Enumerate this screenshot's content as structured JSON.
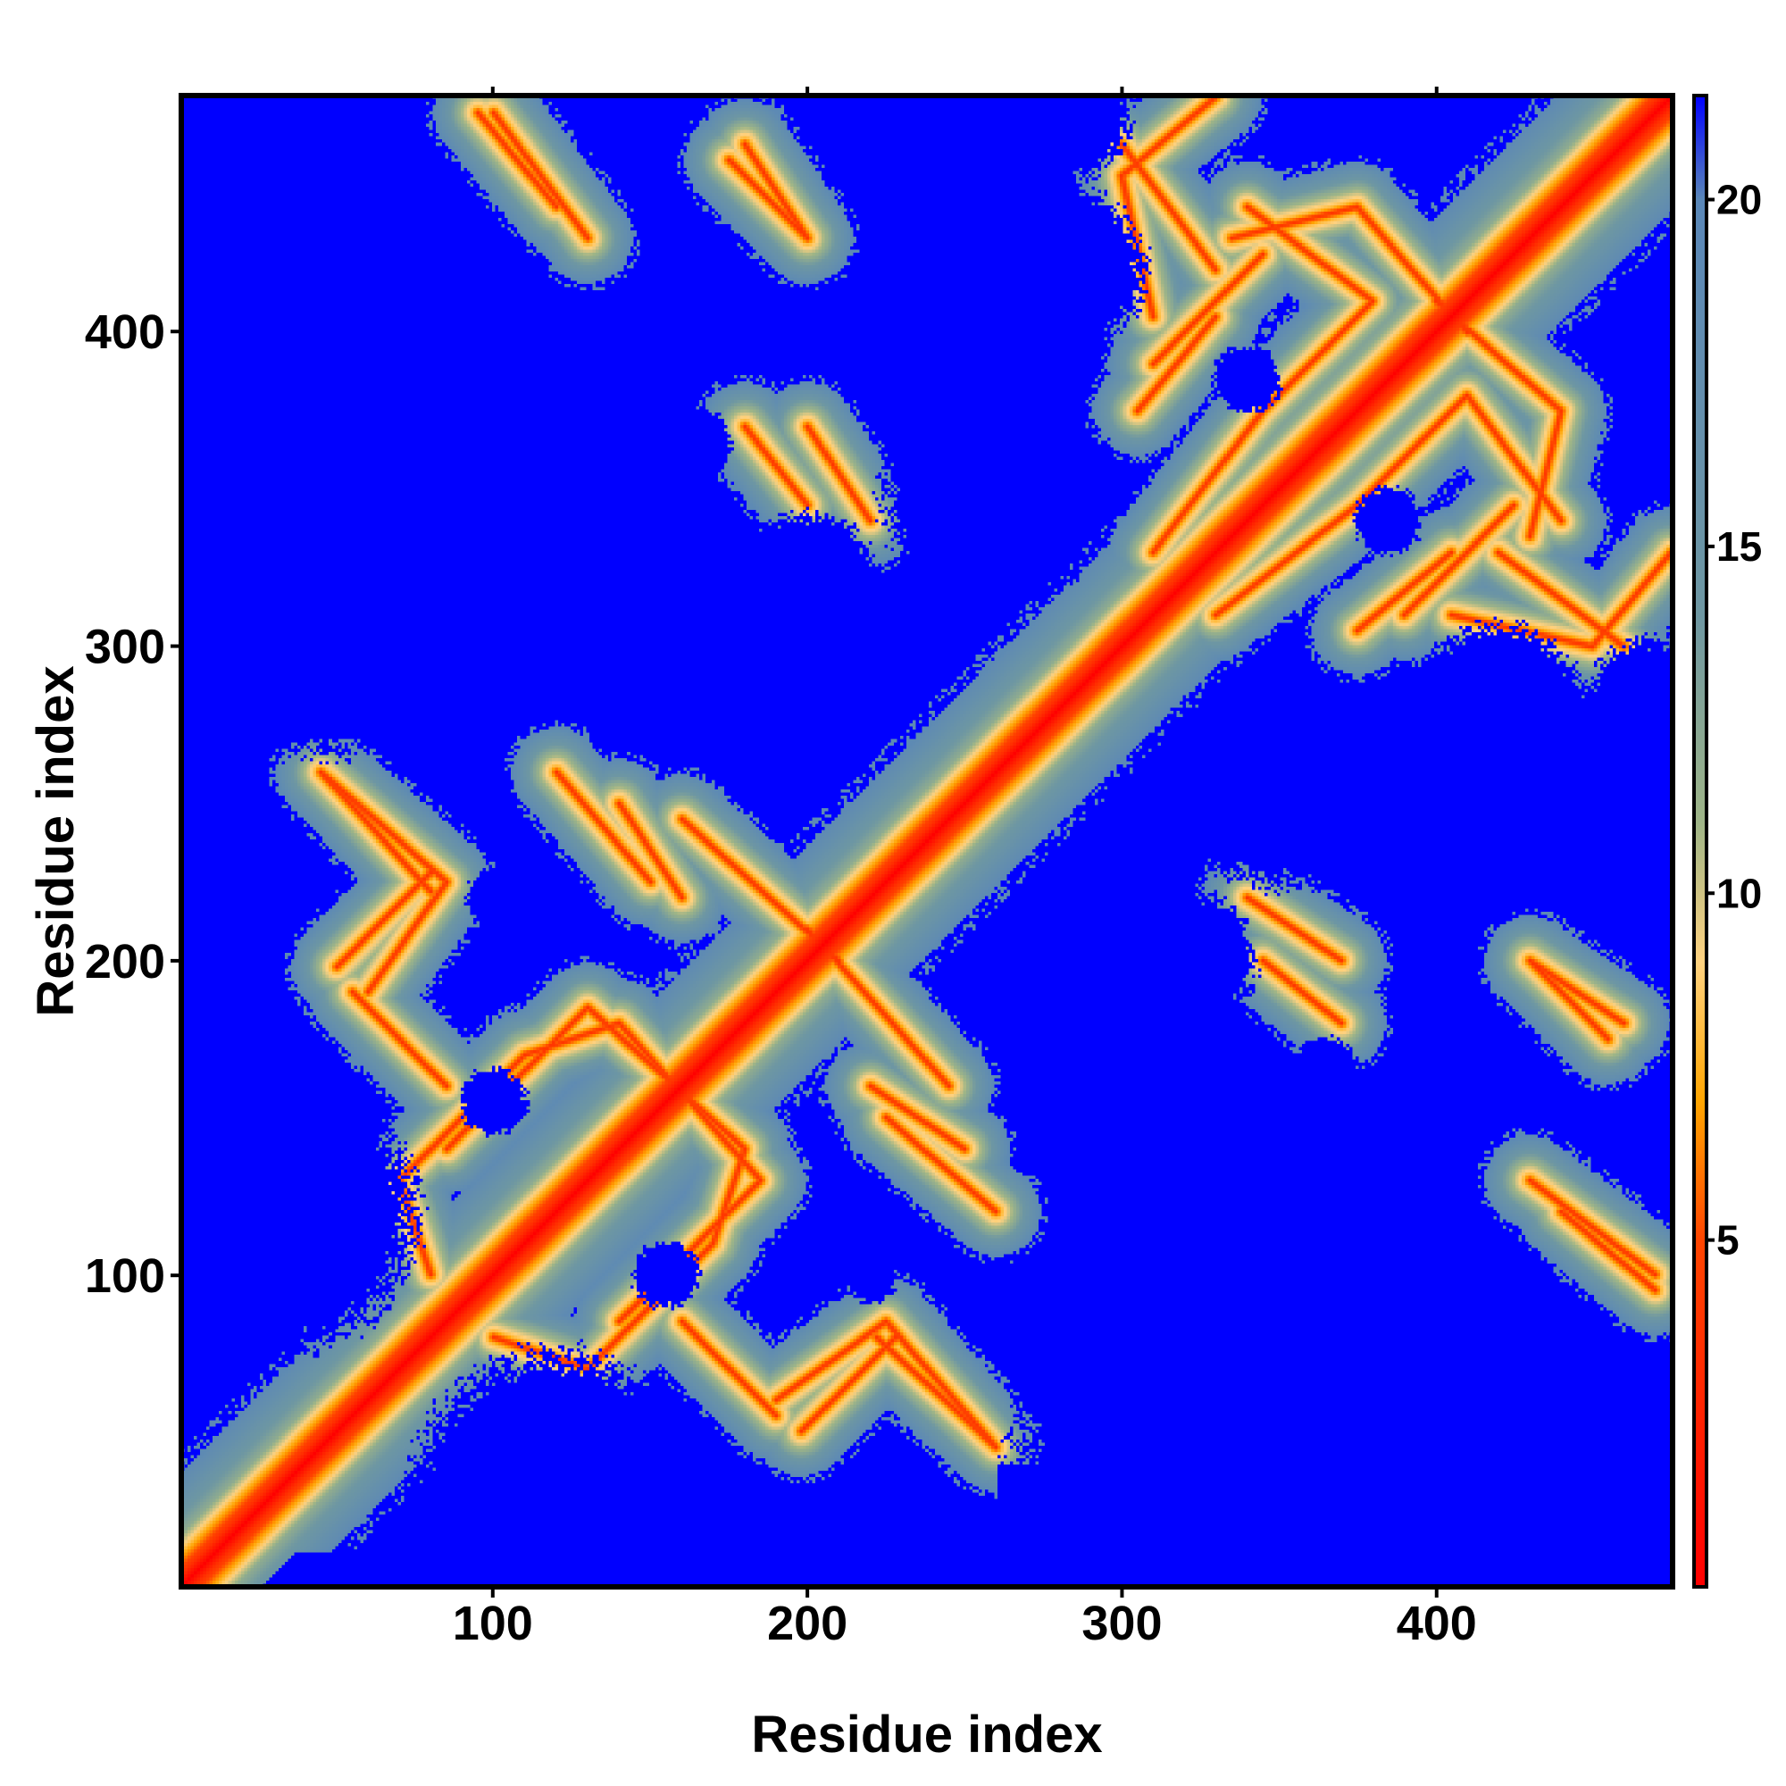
{
  "chart_data": {
    "type": "heatmap",
    "title": "",
    "xlabel": "Residue index",
    "ylabel": "Residue index",
    "xlim": [
      1,
      475
    ],
    "ylim": [
      1,
      475
    ],
    "x_ticks": [
      100,
      200,
      300,
      400
    ],
    "y_ticks": [
      100,
      200,
      300,
      400
    ],
    "colorbar": {
      "ticks": [
        5,
        10,
        15,
        20
      ],
      "range": [
        0,
        21.5
      ],
      "colors": [
        {
          "value": 0,
          "color": "#ff0000"
        },
        {
          "value": 5,
          "color": "#ff4500"
        },
        {
          "value": 7,
          "color": "#ffa500"
        },
        {
          "value": 9,
          "color": "#ffd27f"
        },
        {
          "value": 11,
          "color": "#9fb587"
        },
        {
          "value": 14,
          "color": "#6e97a2"
        },
        {
          "value": 20,
          "color": "#5a87b8"
        },
        {
          "value": 21.5,
          "color": "#0000ff"
        }
      ]
    },
    "description_values": {
      "diagonal_value": 0,
      "background_value": 21.5
    },
    "contact_bands": [
      {
        "from": [
          45,
          260
        ],
        "to": [
          80,
          222
        ]
      },
      {
        "from": [
          50,
          198
        ],
        "to": [
          80,
          228
        ]
      },
      {
        "from": [
          55,
          190
        ],
        "to": [
          85,
          160
        ]
      },
      {
        "from": [
          85,
          140
        ],
        "to": [
          130,
          185
        ]
      },
      {
        "from": [
          130,
          185
        ],
        "to": [
          180,
          140
        ]
      },
      {
        "from": [
          180,
          140
        ],
        "to": [
          170,
          110
        ]
      },
      {
        "from": [
          170,
          110
        ],
        "to": [
          130,
          70
        ]
      },
      {
        "from": [
          130,
          70
        ],
        "to": [
          100,
          80
        ]
      },
      {
        "from": [
          190,
          60
        ],
        "to": [
          225,
          85
        ]
      },
      {
        "from": [
          225,
          85
        ],
        "to": [
          260,
          45
        ]
      },
      {
        "from": [
          225,
          150
        ],
        "to": [
          260,
          120
        ]
      },
      {
        "from": [
          140,
          250
        ],
        "to": [
          160,
          220
        ]
      },
      {
        "from": [
          200,
          210
        ],
        "to": [
          245,
          160
        ]
      },
      {
        "from": [
          100,
          470
        ],
        "to": [
          130,
          430
        ]
      },
      {
        "from": [
          175,
          455
        ],
        "to": [
          200,
          430
        ]
      },
      {
        "from": [
          200,
          370
        ],
        "to": [
          220,
          340
        ]
      },
      {
        "from": [
          300,
          460
        ],
        "to": [
          330,
          420
        ]
      },
      {
        "from": [
          310,
          390
        ],
        "to": [
          345,
          425
        ]
      },
      {
        "from": [
          335,
          430
        ],
        "to": [
          375,
          440
        ]
      },
      {
        "from": [
          375,
          440
        ],
        "to": [
          410,
          400
        ]
      },
      {
        "from": [
          330,
          310
        ],
        "to": [
          375,
          345
        ]
      },
      {
        "from": [
          375,
          345
        ],
        "to": [
          410,
          380
        ]
      },
      {
        "from": [
          410,
          380
        ],
        "to": [
          440,
          340
        ]
      },
      {
        "from": [
          405,
          310
        ],
        "to": [
          450,
          300
        ]
      },
      {
        "from": [
          450,
          300
        ],
        "to": [
          475,
          330
        ]
      },
      {
        "from": [
          375,
          305
        ],
        "to": [
          405,
          330
        ]
      },
      {
        "from": [
          345,
          200
        ],
        "to": [
          370,
          180
        ]
      },
      {
        "from": [
          430,
          200
        ],
        "to": [
          460,
          180
        ]
      },
      {
        "from": [
          440,
          120
        ],
        "to": [
          470,
          95
        ]
      }
    ],
    "void_regions": [
      {
        "center": [
          30,
          300
        ],
        "radius": 30
      },
      {
        "center": [
          200,
          320
        ],
        "radius": 25
      },
      {
        "center": [
          350,
          260
        ],
        "radius": 40
      },
      {
        "center": [
          300,
          210
        ],
        "radius": 30
      },
      {
        "center": [
          330,
          80
        ],
        "radius": 25
      },
      {
        "center": [
          470,
          280
        ],
        "radius": 25
      },
      {
        "center": [
          150,
          320
        ],
        "radius": 18
      },
      {
        "center": [
          205,
          330
        ],
        "radius": 12
      },
      {
        "center": [
          100,
          155
        ],
        "radius": 12
      },
      {
        "center": [
          220,
          100
        ],
        "radius": 10
      },
      {
        "center": [
          365,
          165
        ],
        "radius": 12
      },
      {
        "center": [
          385,
          340
        ],
        "radius": 12
      },
      {
        "center": [
          280,
          420
        ],
        "radius": 30
      },
      {
        "center": [
          30,
          120
        ],
        "radius": 40
      },
      {
        "center": [
          420,
          40
        ],
        "radius": 60
      },
      {
        "center": [
          330,
          40
        ],
        "radius": 70
      },
      {
        "center": [
          120,
          30
        ],
        "radius": 50
      }
    ]
  }
}
